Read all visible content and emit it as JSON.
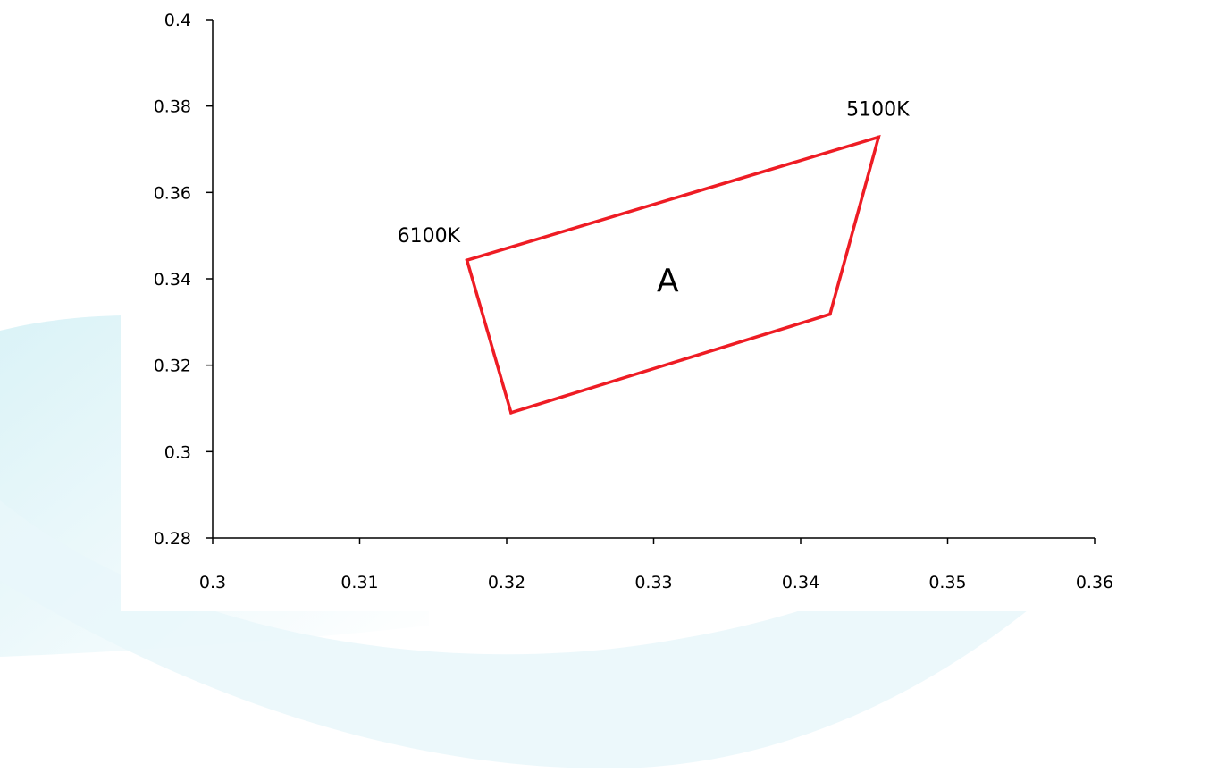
{
  "chart_data": {
    "type": "scatter",
    "title": "",
    "xlabel": "",
    "ylabel": "",
    "xlim": [
      0.3,
      0.36
    ],
    "ylim": [
      0.28,
      0.4
    ],
    "xticks": [
      0.3,
      0.31,
      0.32,
      0.33,
      0.34,
      0.35,
      0.36
    ],
    "yticks": [
      0.28,
      0.3,
      0.32,
      0.34,
      0.36,
      0.38,
      0.4
    ],
    "xtick_labels": [
      "0.3",
      "0.31",
      "0.32",
      "0.33",
      "0.34",
      "0.35",
      "0.36"
    ],
    "ytick_labels": [
      "0.28",
      "0.3",
      "0.32",
      "0.34",
      "0.36",
      "0.38",
      "0.4"
    ],
    "grid": false,
    "legend": "none",
    "line_color": "#ee1c24",
    "series": [
      {
        "closed": true,
        "points": [
          {
            "x": 0.3173,
            "y": 0.3443
          },
          {
            "x": 0.3453,
            "y": 0.3728
          },
          {
            "x": 0.342,
            "y": 0.3318
          },
          {
            "x": 0.3203,
            "y": 0.309
          }
        ]
      }
    ],
    "annotations": [
      {
        "text": "6100K",
        "x": 0.3173,
        "y": 0.3443
      },
      {
        "text": "5100K",
        "x": 0.3453,
        "y": 0.3728
      },
      {
        "text": "A",
        "x": 0.331,
        "y": 0.34
      }
    ]
  }
}
